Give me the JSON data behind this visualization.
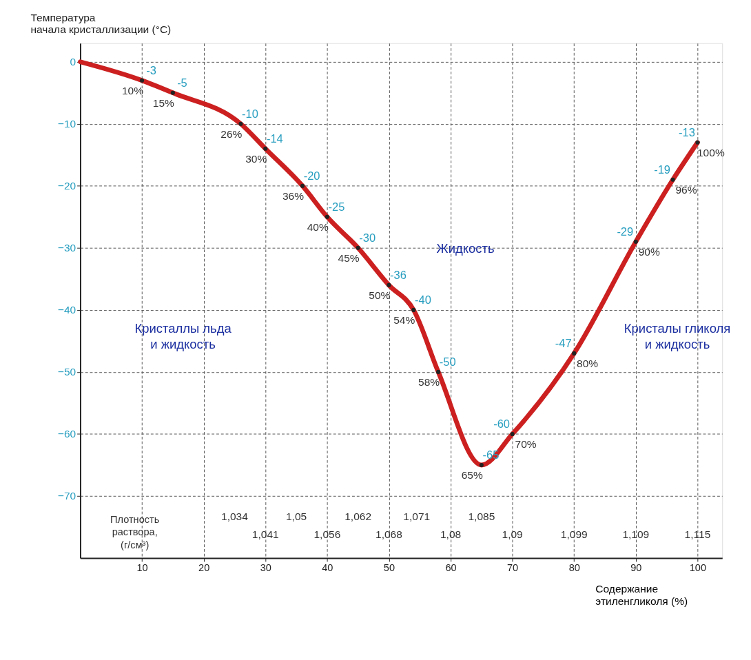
{
  "chart_data": {
    "type": "line",
    "ylabel": "Температура\nначала кристаллизации (°C)",
    "xlabel": "Содержание\nэтиленгликоля (%)",
    "xlim": [
      0,
      104
    ],
    "xticks": [
      10,
      20,
      30,
      40,
      50,
      60,
      70,
      80,
      90,
      100
    ],
    "ylim": [
      -80,
      3
    ],
    "yticks": [
      0,
      -10,
      -20,
      -30,
      -40,
      -50,
      -60,
      -70
    ],
    "grid": true,
    "marker": "circle",
    "line_style": "solid",
    "x": [
      0,
      10,
      15,
      26,
      30,
      36,
      40,
      45,
      50,
      54,
      58,
      65,
      70,
      80,
      90,
      96,
      100
    ],
    "series": [
      {
        "color": "#cc2020",
        "values": [
          0,
          -3,
          -5,
          -10,
          -14,
          -20,
          -25,
          -30,
          -36,
          -40,
          -50,
          -65,
          -60,
          -47,
          -29,
          -19,
          -13
        ],
        "value_labels": [
          null,
          "-3",
          "-5",
          "-10",
          "-14",
          "-20",
          "-25",
          "-30",
          "-36",
          "-40",
          "-50",
          "-65",
          "-60",
          "-47",
          "-29",
          "-19",
          "-13"
        ]
      }
    ],
    "annotations": [
      {
        "text": "10%",
        "x": 10,
        "y": -3
      },
      {
        "text": "15%",
        "x": 15,
        "y": -5
      },
      {
        "text": "26%",
        "x": 26,
        "y": -10
      },
      {
        "text": "30%",
        "x": 30,
        "y": -14
      },
      {
        "text": "36%",
        "x": 36,
        "y": -20
      },
      {
        "text": "40%",
        "x": 40,
        "y": -25
      },
      {
        "text": "45%",
        "x": 45,
        "y": -30
      },
      {
        "text": "50%",
        "x": 50,
        "y": -36
      },
      {
        "text": "54%",
        "x": 54,
        "y": -40
      },
      {
        "text": "58%",
        "x": 58,
        "y": -50
      },
      {
        "text": "65%",
        "x": 65,
        "y": -65
      },
      {
        "text": "70%",
        "x": 70,
        "y": -60
      },
      {
        "text": "80%",
        "x": 80,
        "y": -47
      },
      {
        "text": "90%",
        "x": 90,
        "y": -29
      },
      {
        "text": "96%",
        "x": 96,
        "y": -19
      },
      {
        "text": "100%",
        "x": 100,
        "y": -13
      },
      "Жидкость",
      "Кристаллы льда\nи жидкость",
      "Кристалы гликоля\nи жидкость",
      "Плотность\nраствора,\n(г/см³)",
      "1,034",
      "1,041",
      "1,05",
      "1,056",
      "1,062",
      "1,068",
      "1,071",
      "1,08",
      "1,085",
      "1,09",
      "1,099",
      "1,109",
      "1,115"
    ]
  }
}
